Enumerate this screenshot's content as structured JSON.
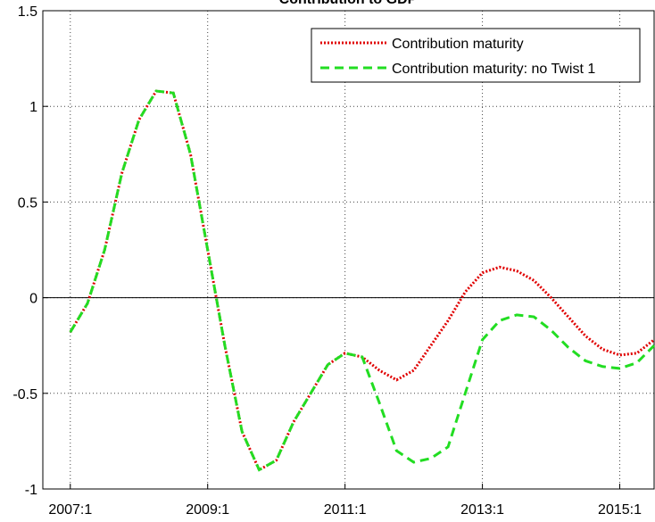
{
  "chart_data": {
    "type": "line",
    "title": "Contribution to GDP",
    "x": [
      2007.0,
      2007.25,
      2007.5,
      2007.75,
      2008.0,
      2008.25,
      2008.5,
      2008.75,
      2009.0,
      2009.25,
      2009.5,
      2009.75,
      2010.0,
      2010.25,
      2010.5,
      2010.75,
      2011.0,
      2011.25,
      2011.5,
      2011.75,
      2012.0,
      2012.25,
      2012.5,
      2012.75,
      2013.0,
      2013.25,
      2013.5,
      2013.75,
      2014.0,
      2014.25,
      2014.5,
      2014.75,
      2015.0,
      2015.25,
      2015.5
    ],
    "series": [
      {
        "name": "Contribution maturity",
        "color": "#e00000",
        "style": "dotted",
        "values": [
          -0.18,
          -0.03,
          0.25,
          0.65,
          0.93,
          1.08,
          1.07,
          0.75,
          0.25,
          -0.25,
          -0.7,
          -0.9,
          -0.85,
          -0.65,
          -0.5,
          -0.35,
          -0.29,
          -0.31,
          -0.38,
          -0.43,
          -0.38,
          -0.25,
          -0.12,
          0.03,
          0.13,
          0.16,
          0.14,
          0.09,
          0.0,
          -0.1,
          -0.2,
          -0.27,
          -0.3,
          -0.29,
          -0.22
        ]
      },
      {
        "name": "Contribution maturity: no Twist 1",
        "color": "#22dd22",
        "style": "dashed",
        "values": [
          -0.18,
          -0.03,
          0.25,
          0.65,
          0.93,
          1.08,
          1.07,
          0.75,
          0.25,
          -0.25,
          -0.7,
          -0.9,
          -0.85,
          -0.65,
          -0.5,
          -0.35,
          -0.29,
          -0.31,
          -0.55,
          -0.8,
          -0.86,
          -0.84,
          -0.78,
          -0.5,
          -0.22,
          -0.12,
          -0.09,
          -0.1,
          -0.17,
          -0.26,
          -0.33,
          -0.36,
          -0.37,
          -0.34,
          -0.25
        ]
      }
    ],
    "xlim": [
      2006.6,
      2015.5
    ],
    "xticks": [
      {
        "value": 2007,
        "label": "2007:1"
      },
      {
        "value": 2009,
        "label": "2009:1"
      },
      {
        "value": 2011,
        "label": "2011:1"
      },
      {
        "value": 2013,
        "label": "2013:1"
      },
      {
        "value": 2015,
        "label": "2015:1"
      }
    ],
    "ylim": [
      -1,
      1.5
    ],
    "yticks": [
      -1,
      -0.5,
      0,
      0.5,
      1,
      1.5
    ],
    "grid": true,
    "legend": "upper right"
  }
}
